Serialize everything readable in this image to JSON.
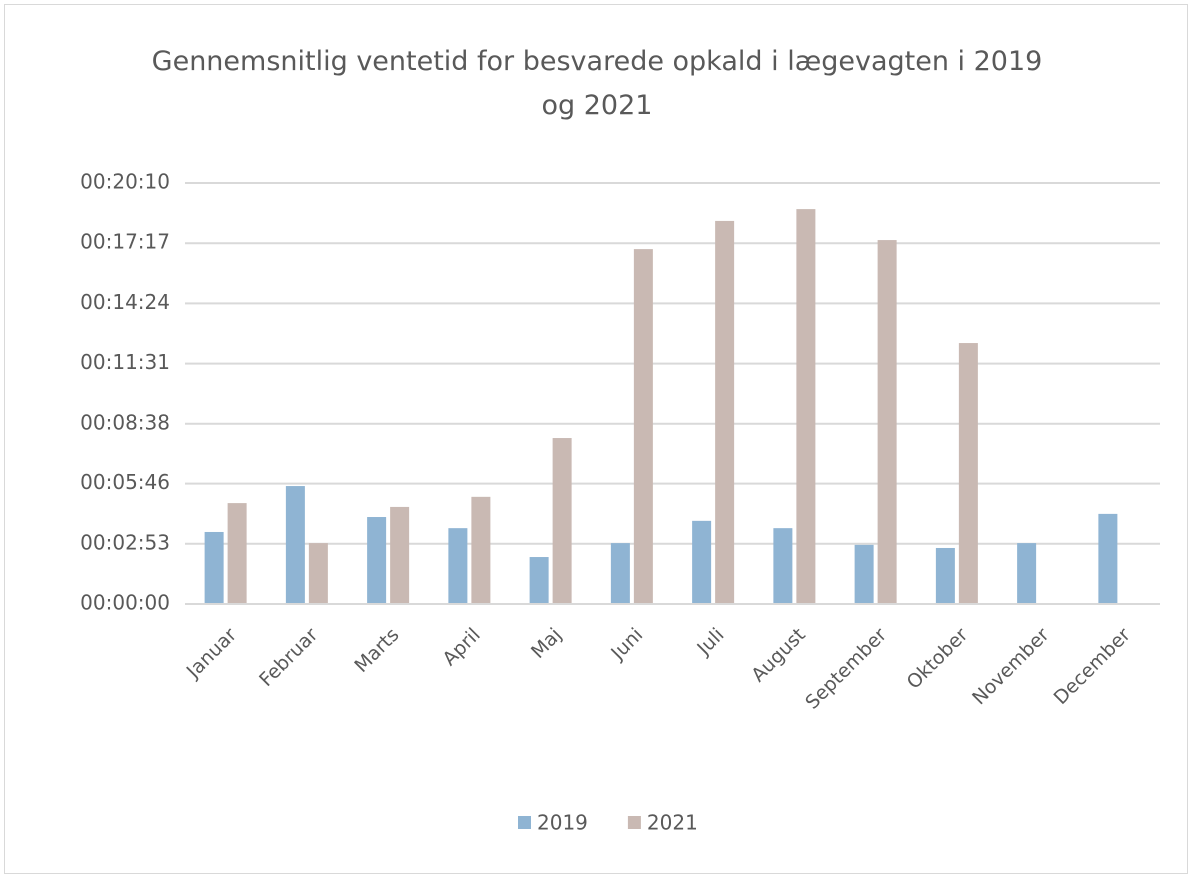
{
  "chart_data": {
    "type": "bar",
    "title": "Gennemsnitlig ventetid for besvarede opkald i lægevagten i 2019 og 2021",
    "categories": [
      "Januar",
      "Februar",
      "Marts",
      "April",
      "Maj",
      "Juni",
      "Juli",
      "August",
      "September",
      "Oktober",
      "November",
      "December"
    ],
    "series": [
      {
        "name": "2019",
        "color": "#8fb4d3",
        "values": [
          207,
          339,
          250,
          218,
          135,
          175,
          239,
          218,
          170,
          161,
          175,
          259
        ]
      },
      {
        "name": "2021",
        "color": "#c9b9b3",
        "values": [
          290,
          175,
          279,
          308,
          477,
          1020,
          1101,
          1135,
          1046,
          750,
          null,
          null
        ]
      }
    ],
    "ylim": [
      0,
      1210
    ],
    "yticks": [
      {
        "value": 0,
        "label": "00:00:00"
      },
      {
        "value": 173,
        "label": "00:02:53"
      },
      {
        "value": 346,
        "label": "00:05:46"
      },
      {
        "value": 518,
        "label": "00:08:38"
      },
      {
        "value": 691,
        "label": "00:11:31"
      },
      {
        "value": 864,
        "label": "00:14:24"
      },
      {
        "value": 1037,
        "label": "00:17:17"
      },
      {
        "value": 1210,
        "label": "00:20:10"
      }
    ],
    "grid": true,
    "legend": "bottom"
  }
}
